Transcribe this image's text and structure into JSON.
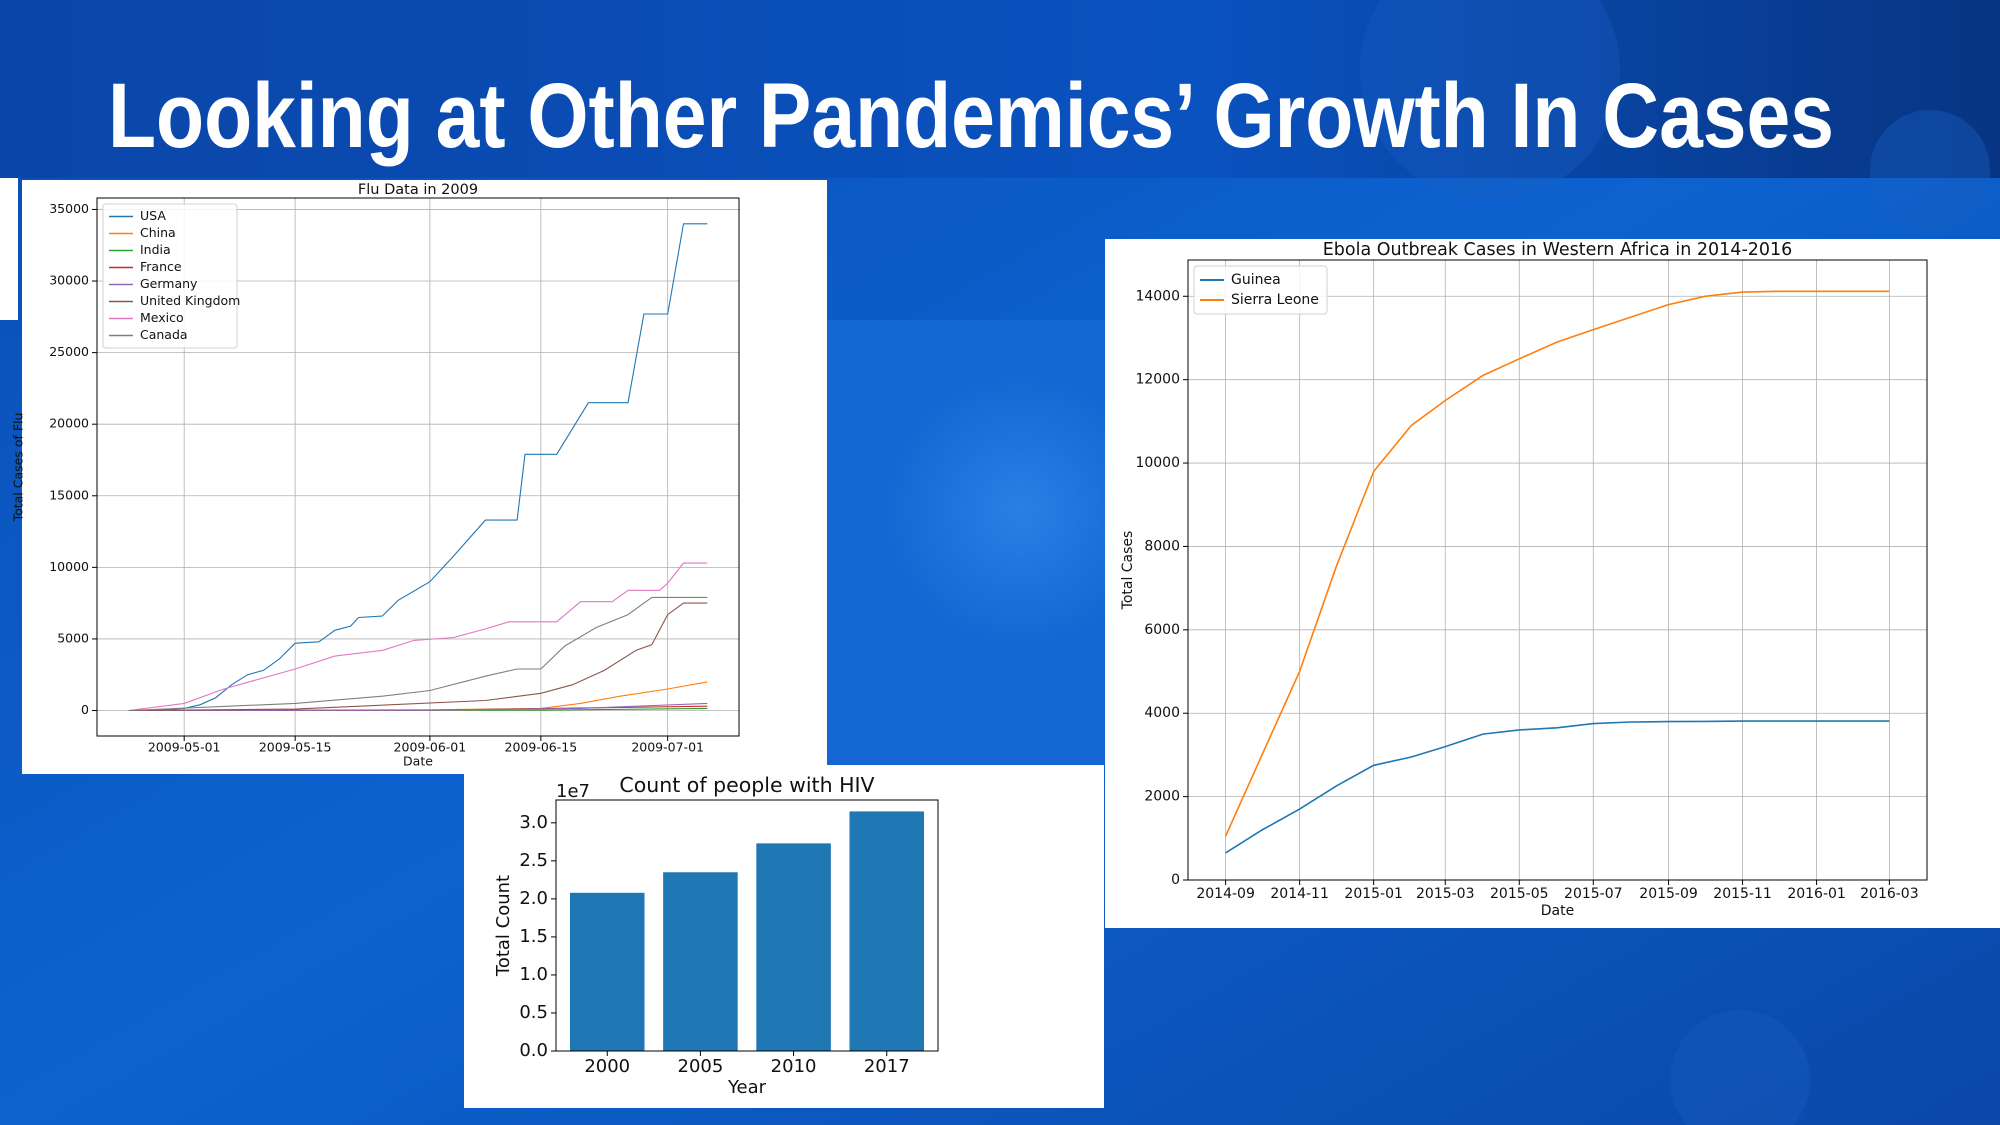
{
  "title": "Looking at Other Pandemics’ Growth In Cases",
  "chart_data": [
    {
      "type": "line",
      "title": "Flu Data in 2009",
      "x_label": "Date",
      "y_label": "Total Cases of Flu",
      "xlim": [
        "2009-04-20",
        "2009-07-10"
      ],
      "xticks": [
        "2009-05-01",
        "2009-05-15",
        "2009-06-01",
        "2009-06-15",
        "2009-07-01"
      ],
      "ylim": [
        -1780,
        35800
      ],
      "yticks": [
        0,
        5000,
        10000,
        15000,
        20000,
        25000,
        30000,
        35000
      ],
      "grid": true,
      "legend": "upper left",
      "series": [
        {
          "name": "USA",
          "color": "#1f77b4",
          "x": [
            "2009-04-24",
            "2009-04-28",
            "2009-05-01",
            "2009-05-03",
            "2009-05-05",
            "2009-05-07",
            "2009-05-09",
            "2009-05-11",
            "2009-05-13",
            "2009-05-15",
            "2009-05-18",
            "2009-05-20",
            "2009-05-22",
            "2009-05-23",
            "2009-05-26",
            "2009-05-28",
            "2009-06-01",
            "2009-06-04",
            "2009-06-08",
            "2009-06-12",
            "2009-06-13",
            "2009-06-17",
            "2009-06-21",
            "2009-06-26",
            "2009-06-28",
            "2009-07-01",
            "2009-07-03",
            "2009-07-06"
          ],
          "values": [
            0,
            50,
            150,
            400,
            900,
            1800,
            2500,
            2800,
            3600,
            4700,
            4800,
            5600,
            5900,
            6500,
            6600,
            7700,
            9000,
            10800,
            13300,
            13300,
            17900,
            17900,
            21500,
            21500,
            27700,
            27700,
            34000,
            34000
          ]
        },
        {
          "name": "China",
          "color": "#ff7f0e",
          "x": [
            "2009-04-24",
            "2009-06-01",
            "2009-06-15",
            "2009-06-20",
            "2009-06-25",
            "2009-07-01",
            "2009-07-06"
          ],
          "values": [
            0,
            50,
            150,
            500,
            1000,
            1500,
            2000
          ]
        },
        {
          "name": "India",
          "color": "#2ca02c",
          "x": [
            "2009-04-24",
            "2009-06-15",
            "2009-07-06"
          ],
          "values": [
            0,
            20,
            150
          ]
        },
        {
          "name": "France",
          "color": "#d62728",
          "x": [
            "2009-04-24",
            "2009-06-01",
            "2009-07-06"
          ],
          "values": [
            0,
            20,
            300
          ]
        },
        {
          "name": "Germany",
          "color": "#9467bd",
          "x": [
            "2009-04-24",
            "2009-06-01",
            "2009-06-20",
            "2009-07-06"
          ],
          "values": [
            0,
            30,
            150,
            500
          ]
        },
        {
          "name": "United Kingdom",
          "color": "#8c564b",
          "x": [
            "2009-04-24",
            "2009-05-15",
            "2009-06-08",
            "2009-06-15",
            "2009-06-19",
            "2009-06-23",
            "2009-06-27",
            "2009-06-29",
            "2009-07-01",
            "2009-07-03",
            "2009-07-06"
          ],
          "values": [
            0,
            100,
            700,
            1200,
            1800,
            2800,
            4200,
            4600,
            6700,
            7500,
            7500
          ]
        },
        {
          "name": "Mexico",
          "color": "#e377c2",
          "x": [
            "2009-04-24",
            "2009-05-01",
            "2009-05-06",
            "2009-05-15",
            "2009-05-20",
            "2009-05-26",
            "2009-05-30",
            "2009-06-04",
            "2009-06-08",
            "2009-06-11",
            "2009-06-17",
            "2009-06-20",
            "2009-06-24",
            "2009-06-26",
            "2009-06-30",
            "2009-07-01",
            "2009-07-03",
            "2009-07-06"
          ],
          "values": [
            0,
            500,
            1500,
            2900,
            3800,
            4200,
            4900,
            5100,
            5700,
            6200,
            6200,
            7600,
            7600,
            8400,
            8400,
            8900,
            10300,
            10300
          ]
        },
        {
          "name": "Canada",
          "color": "#7f7f7f",
          "x": [
            "2009-04-24",
            "2009-05-15",
            "2009-05-26",
            "2009-06-01",
            "2009-06-08",
            "2009-06-12",
            "2009-06-15",
            "2009-06-18",
            "2009-06-22",
            "2009-06-26",
            "2009-06-29",
            "2009-07-06"
          ],
          "values": [
            0,
            500,
            1000,
            1400,
            2400,
            2900,
            2900,
            4500,
            5800,
            6700,
            7900,
            7900
          ]
        }
      ]
    },
    {
      "type": "line",
      "title": "Ebola Outbreak Cases in Western Africa in 2014-2016",
      "x_label": "Date",
      "y_label": "Total Cases",
      "xlim": [
        "2014-08",
        "2016-04"
      ],
      "xticks": [
        "2014-09",
        "2014-11",
        "2015-01",
        "2015-03",
        "2015-05",
        "2015-07",
        "2015-09",
        "2015-11",
        "2016-01",
        "2016-03"
      ],
      "ylim": [
        0,
        14870
      ],
      "yticks": [
        0,
        2000,
        4000,
        6000,
        8000,
        10000,
        12000,
        14000
      ],
      "grid": true,
      "legend": "upper left",
      "series": [
        {
          "name": "Guinea",
          "color": "#1f77b4",
          "x": [
            "2014-09",
            "2014-10",
            "2014-11",
            "2014-12",
            "2015-01",
            "2015-02",
            "2015-03",
            "2015-04",
            "2015-05",
            "2015-06",
            "2015-07",
            "2015-08",
            "2015-09",
            "2015-10",
            "2015-11",
            "2015-12",
            "2016-01",
            "2016-02",
            "2016-03"
          ],
          "values": [
            650,
            1200,
            1700,
            2250,
            2750,
            2950,
            3200,
            3500,
            3600,
            3650,
            3750,
            3790,
            3800,
            3805,
            3810,
            3810,
            3810,
            3810,
            3810
          ]
        },
        {
          "name": "Sierra Leone",
          "color": "#ff7f0e",
          "x": [
            "2014-09",
            "2014-10",
            "2014-11",
            "2014-12",
            "2015-01",
            "2015-02",
            "2015-03",
            "2015-04",
            "2015-05",
            "2015-06",
            "2015-07",
            "2015-08",
            "2015-09",
            "2015-10",
            "2015-11",
            "2015-12",
            "2016-01",
            "2016-02",
            "2016-03"
          ],
          "values": [
            1050,
            3000,
            5000,
            7500,
            9800,
            10900,
            11500,
            12100,
            12500,
            12900,
            13200,
            13500,
            13800,
            14000,
            14100,
            14120,
            14120,
            14120,
            14120
          ]
        }
      ]
    },
    {
      "type": "bar",
      "title": "Count of people with HIV",
      "x_label": "Year",
      "y_label": "Total Count",
      "y_offset_label": "1e7",
      "color": "#1f77b4",
      "categories": [
        "2000",
        "2005",
        "2010",
        "2017"
      ],
      "values": [
        20800000,
        23500000,
        27300000,
        31500000
      ],
      "ylim": [
        0,
        33000000
      ],
      "yticks": [
        {
          "value": 0,
          "label": "0.0"
        },
        {
          "value": 5000000,
          "label": "0.5"
        },
        {
          "value": 10000000,
          "label": "1.0"
        },
        {
          "value": 15000000,
          "label": "1.5"
        },
        {
          "value": 20000000,
          "label": "2.0"
        },
        {
          "value": 25000000,
          "label": "2.5"
        },
        {
          "value": 30000000,
          "label": "3.0"
        }
      ],
      "grid": false
    }
  ]
}
